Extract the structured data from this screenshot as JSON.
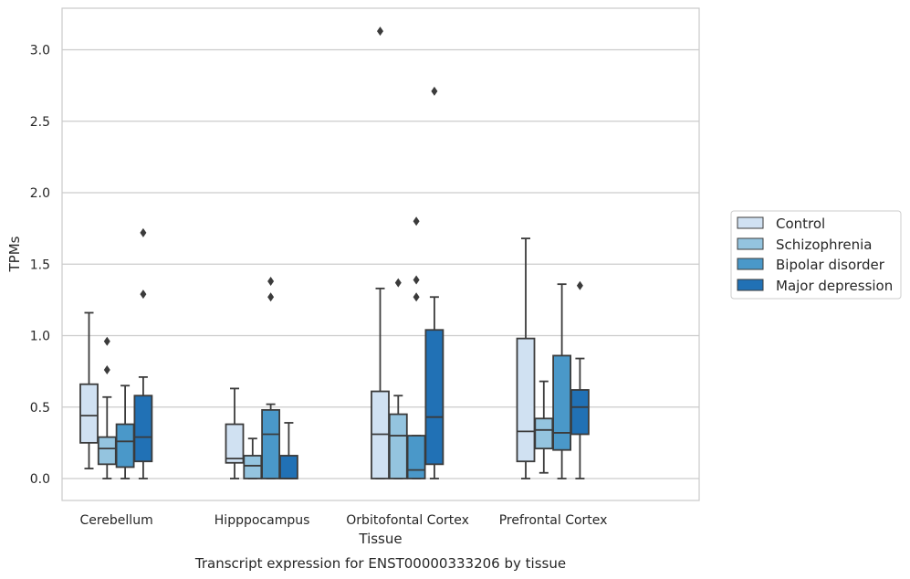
{
  "chart_data": {
    "type": "box",
    "title": "",
    "caption": "Transcript expression for ENST00000333206 by tissue",
    "xlabel": "Tissue",
    "ylabel": "TPMs",
    "ylim": [
      -0.15,
      3.3
    ],
    "yticks": [
      "0.0",
      "0.5",
      "1.0",
      "1.5",
      "2.0",
      "2.5",
      "3.0"
    ],
    "grid": "horizontal",
    "legend_position": "right",
    "categories": [
      "Cerebellum",
      "Hipppocampus",
      "Orbitofontal Cortex",
      "Prefrontal Cortex"
    ],
    "series": [
      {
        "name": "Control",
        "color": "#d0e1f2",
        "boxes": [
          {
            "min": 0.07,
            "q1": 0.25,
            "median": 0.44,
            "q3": 0.66,
            "max": 1.16,
            "outliers": []
          },
          {
            "min": 0.0,
            "q1": 0.11,
            "median": 0.14,
            "q3": 0.38,
            "max": 0.63,
            "outliers": []
          },
          {
            "min": 0.0,
            "q1": 0.0,
            "median": 0.31,
            "q3": 0.61,
            "max": 1.33,
            "outliers": [
              3.13
            ]
          },
          {
            "min": 0.0,
            "q1": 0.12,
            "median": 0.33,
            "q3": 0.98,
            "max": 1.68,
            "outliers": []
          }
        ]
      },
      {
        "name": "Schizophrenia",
        "color": "#94c4df",
        "boxes": [
          {
            "min": 0.0,
            "q1": 0.1,
            "median": 0.21,
            "q3": 0.29,
            "max": 0.57,
            "outliers": [
              0.76,
              0.96
            ]
          },
          {
            "min": 0.0,
            "q1": 0.0,
            "median": 0.09,
            "q3": 0.16,
            "max": 0.28,
            "outliers": []
          },
          {
            "min": 0.0,
            "q1": 0.0,
            "median": 0.3,
            "q3": 0.45,
            "max": 0.58,
            "outliers": [
              1.37
            ]
          },
          {
            "min": 0.04,
            "q1": 0.21,
            "median": 0.34,
            "q3": 0.42,
            "max": 0.68,
            "outliers": []
          }
        ]
      },
      {
        "name": "Bipolar disorder",
        "color": "#4a98c9",
        "boxes": [
          {
            "min": 0.0,
            "q1": 0.08,
            "median": 0.26,
            "q3": 0.38,
            "max": 0.65,
            "outliers": []
          },
          {
            "min": 0.0,
            "q1": 0.0,
            "median": 0.31,
            "q3": 0.48,
            "max": 0.52,
            "outliers": [
              1.27,
              1.38
            ]
          },
          {
            "min": 0.0,
            "q1": 0.0,
            "median": 0.06,
            "q3": 0.3,
            "max": 0.3,
            "outliers": [
              1.27,
              1.39,
              1.8
            ]
          },
          {
            "min": 0.0,
            "q1": 0.2,
            "median": 0.32,
            "q3": 0.86,
            "max": 1.36,
            "outliers": []
          }
        ]
      },
      {
        "name": "Major depression",
        "color": "#2171b5",
        "boxes": [
          {
            "min": 0.0,
            "q1": 0.12,
            "median": 0.29,
            "q3": 0.58,
            "max": 0.71,
            "outliers": [
              1.29,
              1.72
            ]
          },
          {
            "min": 0.0,
            "q1": 0.0,
            "median": 0.0,
            "q3": 0.16,
            "max": 0.39,
            "outliers": []
          },
          {
            "min": 0.0,
            "q1": 0.1,
            "median": 0.43,
            "q3": 1.04,
            "max": 1.27,
            "outliers": [
              2.71
            ]
          },
          {
            "min": 0.0,
            "q1": 0.31,
            "median": 0.5,
            "q3": 0.62,
            "max": 0.84,
            "outliers": [
              1.35
            ]
          }
        ]
      }
    ]
  }
}
